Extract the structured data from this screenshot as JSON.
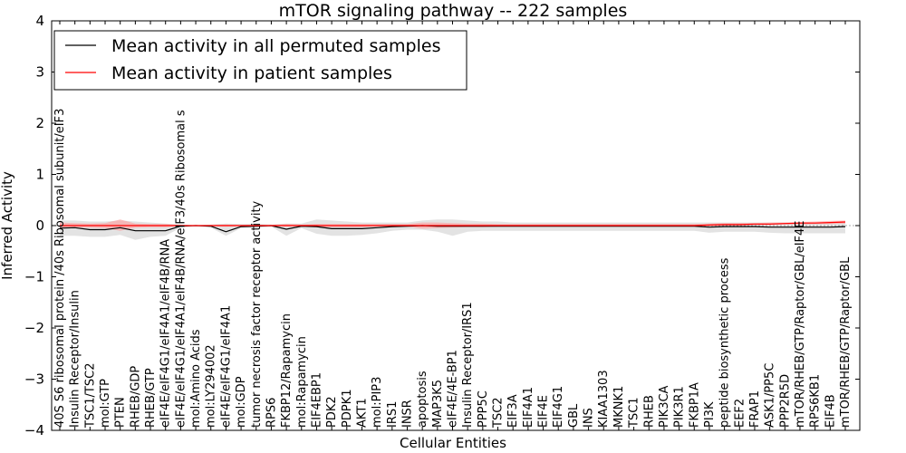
{
  "chart_data": {
    "type": "line",
    "title": "mTOR signaling pathway -- 222 samples",
    "xlabel": "Cellular Entities",
    "ylabel": "Inferred Activity",
    "ylim": [
      -4,
      4
    ],
    "yticks": [
      -4,
      -3,
      -2,
      -1,
      0,
      1,
      2,
      3,
      4
    ],
    "ytick_labels": [
      "−4",
      "−3",
      "−2",
      "−1",
      "0",
      "1",
      "2",
      "3",
      "4"
    ],
    "legend_position": "top-left",
    "colors": {
      "all": "#000000",
      "patient": "#ff0000",
      "band_all": "#d9d9d9",
      "band_patient": "#ff9a9a"
    },
    "categories": [
      "40S S6 ribosomal protein /40s Ribosomal subunit/eIF3",
      "Insulin Receptor/Insulin",
      "TSC1/TSC2",
      "mol:GTP",
      "PTEN",
      "RHEB/GDP",
      "RHEB/GTP",
      "eIF4E/eIF4G1/eIF4A1/eIF4B/RNA",
      "eIF4E/eIF4G1/eIF4A1/eIF4B/RNA/eIF3/40s Ribosomal s",
      "mol:Amino Acids",
      "mol:LY294002",
      "eIF4E/eIF4G1/eIF4A1",
      "mol:GDP",
      "tumor necrosis factor receptor activity",
      "RPS6",
      "FKBP12/Rapamycin",
      "mol:Rapamycin",
      "EIF4EBP1",
      "PDK2",
      "PDPK1",
      "AKT1",
      "mol:PIP3",
      "IRS1",
      "INSR",
      "apoptosis",
      "MAP3K5",
      "eIF4E/4E-BP1",
      "Insulin Receptor/IRS1",
      "PPP5C",
      "TSC2",
      "EIF3A",
      "EIF4A1",
      "EIF4E",
      "EIF4G1",
      "GBL",
      "INS",
      "KIAA1303",
      "MKNK1",
      "TSC1",
      "RHEB",
      "PIK3CA",
      "PIK3R1",
      "FKBP1A",
      "PI3K",
      "peptide biosynthetic process",
      "EEF2",
      "FRAP1",
      "ASK1/PP5C",
      "PPP2R5D",
      "mTOR/RHEB/GTP/Raptor/GBL/eIF4E",
      "RPS6KB1",
      "EIF4B",
      "mTOR/RHEB/GTP/Raptor/GBL"
    ],
    "series": [
      {
        "name": "Mean activity in all permuted samples",
        "color": "#000000",
        "values": [
          -0.05,
          -0.04,
          -0.08,
          -0.08,
          -0.04,
          -0.1,
          -0.1,
          -0.1,
          -0.01,
          0.0,
          -0.01,
          -0.12,
          -0.02,
          -0.01,
          0.0,
          -0.07,
          -0.01,
          -0.02,
          -0.06,
          -0.06,
          -0.06,
          -0.04,
          -0.02,
          -0.01,
          0.0,
          -0.01,
          -0.01,
          -0.01,
          -0.01,
          -0.01,
          -0.01,
          -0.01,
          -0.01,
          -0.01,
          -0.01,
          -0.01,
          -0.01,
          -0.01,
          -0.01,
          -0.01,
          -0.01,
          -0.01,
          -0.01,
          -0.03,
          -0.02,
          -0.02,
          -0.02,
          -0.03,
          -0.03,
          -0.03,
          -0.03,
          -0.03,
          -0.02
        ],
        "lower": [
          -0.2,
          -0.2,
          -0.22,
          -0.22,
          -0.18,
          -0.28,
          -0.22,
          -0.2,
          -0.04,
          0.0,
          -0.04,
          -0.2,
          -0.05,
          -0.05,
          -0.02,
          -0.2,
          -0.05,
          -0.16,
          -0.2,
          -0.2,
          -0.18,
          -0.15,
          -0.1,
          -0.08,
          -0.08,
          -0.12,
          -0.2,
          -0.12,
          -0.1,
          -0.1,
          -0.1,
          -0.1,
          -0.1,
          -0.1,
          -0.1,
          -0.1,
          -0.1,
          -0.1,
          -0.1,
          -0.1,
          -0.1,
          -0.1,
          -0.1,
          -0.14,
          -0.12,
          -0.12,
          -0.12,
          -0.14,
          -0.15,
          -0.15,
          -0.15,
          -0.15,
          -0.15
        ],
        "upper": [
          0.1,
          0.1,
          0.08,
          0.08,
          0.1,
          0.08,
          0.06,
          0.04,
          0.02,
          0.0,
          0.02,
          0.04,
          0.03,
          0.04,
          0.02,
          0.04,
          0.04,
          0.12,
          0.1,
          0.08,
          0.06,
          0.06,
          0.06,
          0.06,
          0.1,
          0.12,
          0.12,
          0.1,
          0.08,
          0.08,
          0.06,
          0.06,
          0.06,
          0.06,
          0.06,
          0.06,
          0.06,
          0.06,
          0.06,
          0.06,
          0.06,
          0.06,
          0.06,
          0.06,
          0.06,
          0.06,
          0.06,
          0.06,
          0.06,
          0.06,
          0.06,
          0.06,
          0.07
        ]
      },
      {
        "name": "Mean activity in patient samples",
        "color": "#ff0000",
        "values": [
          0.0,
          0.0,
          0.0,
          0.0,
          0.0,
          0.0,
          0.0,
          0.0,
          0.0,
          0.0,
          0.0,
          0.0,
          0.0,
          0.0,
          0.0,
          0.0,
          0.0,
          0.0,
          0.0,
          0.0,
          0.0,
          0.0,
          0.0,
          0.0,
          0.0,
          0.0,
          0.0,
          0.0,
          0.0,
          0.0,
          0.0,
          0.0,
          0.0,
          0.0,
          0.0,
          0.0,
          0.0,
          0.0,
          0.0,
          0.0,
          0.0,
          0.0,
          0.0,
          0.01,
          0.02,
          0.02,
          0.03,
          0.03,
          0.04,
          0.05,
          0.05,
          0.06,
          0.07
        ],
        "lower": [
          -0.06,
          -0.04,
          -0.04,
          -0.05,
          -0.1,
          -0.04,
          -0.03,
          -0.03,
          -0.01,
          0.0,
          -0.01,
          -0.02,
          -0.01,
          -0.01,
          -0.01,
          -0.02,
          -0.01,
          -0.03,
          -0.03,
          -0.03,
          -0.03,
          -0.02,
          -0.02,
          -0.02,
          -0.06,
          -0.05,
          -0.04,
          -0.03,
          -0.03,
          -0.02,
          -0.02,
          -0.02,
          -0.02,
          -0.02,
          -0.02,
          -0.02,
          -0.02,
          -0.02,
          -0.02,
          -0.02,
          -0.02,
          -0.02,
          -0.02,
          -0.01,
          0.0,
          0.0,
          0.01,
          0.01,
          0.02,
          0.02,
          0.03,
          0.03,
          0.04
        ],
        "upper": [
          0.06,
          0.05,
          0.04,
          0.05,
          0.12,
          0.04,
          0.03,
          0.03,
          0.01,
          0.0,
          0.01,
          0.02,
          0.01,
          0.01,
          0.01,
          0.03,
          0.02,
          0.03,
          0.03,
          0.03,
          0.03,
          0.03,
          0.03,
          0.03,
          0.06,
          0.06,
          0.05,
          0.04,
          0.04,
          0.03,
          0.03,
          0.03,
          0.03,
          0.03,
          0.03,
          0.03,
          0.03,
          0.03,
          0.03,
          0.03,
          0.03,
          0.03,
          0.03,
          0.04,
          0.05,
          0.05,
          0.05,
          0.06,
          0.06,
          0.07,
          0.08,
          0.09,
          0.1
        ]
      }
    ]
  }
}
